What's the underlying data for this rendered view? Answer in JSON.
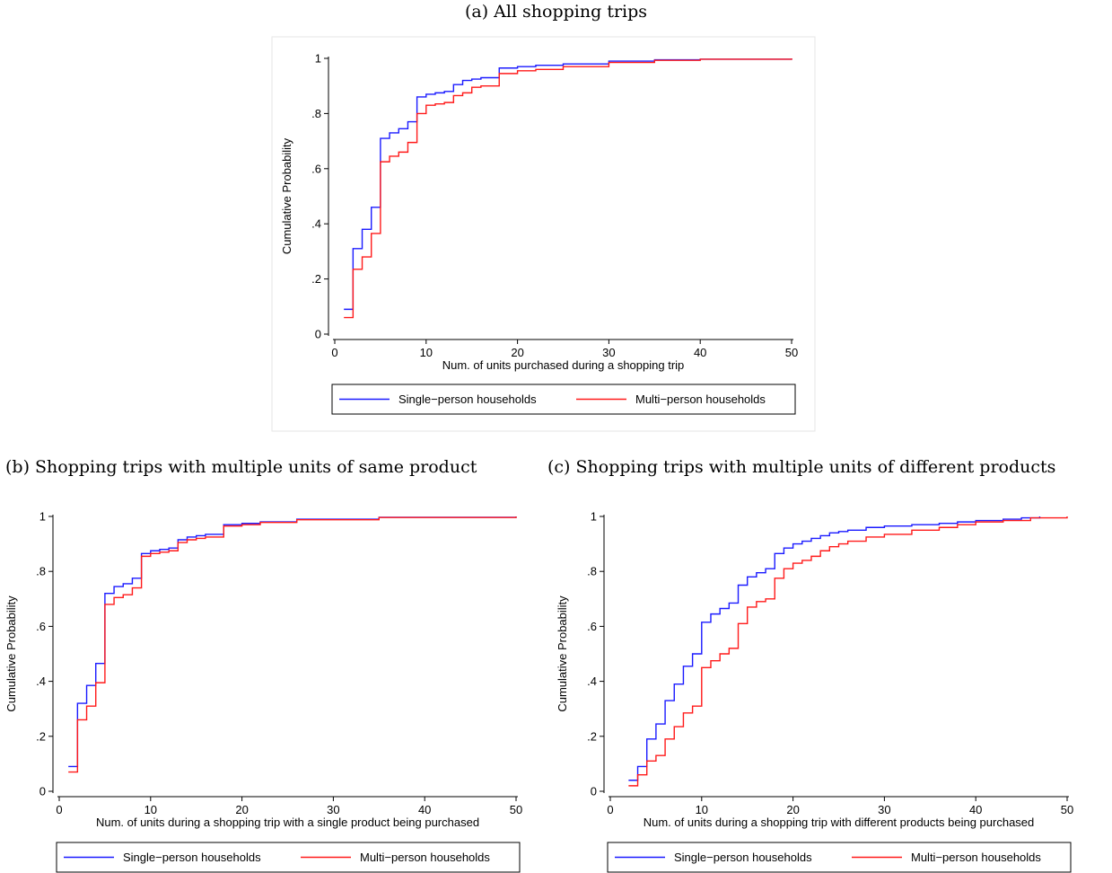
{
  "captions": {
    "a": "(a) All shopping trips",
    "b": "(b) Shopping trips with multiple units of same product",
    "c": "(c) Shopping trips with multiple units of different products"
  },
  "colors": {
    "single": "#1a1aff",
    "multi": "#ff1a1a"
  },
  "chart_data": [
    {
      "id": "a",
      "type": "line",
      "step": true,
      "xlabel": "Num. of units purchased during a shopping trip",
      "ylabel": "Cumulative Probability",
      "xlim": [
        0,
        50
      ],
      "ylim": [
        0,
        1
      ],
      "xticks": [
        0,
        10,
        20,
        30,
        40,
        50
      ],
      "yticks": [
        0,
        0.2,
        0.4,
        0.6,
        0.8,
        1
      ],
      "ytick_labels": [
        "0",
        ".2",
        ".4",
        ".6",
        ".8",
        "1"
      ],
      "legend_position": "bottom",
      "series": [
        {
          "name": "Single−person households",
          "color_key": "single",
          "points": [
            [
              1,
              0.09
            ],
            [
              2,
              0.31
            ],
            [
              3,
              0.38
            ],
            [
              4,
              0.46
            ],
            [
              5,
              0.71
            ],
            [
              6,
              0.73
            ],
            [
              7,
              0.745
            ],
            [
              8,
              0.77
            ],
            [
              9,
              0.86
            ],
            [
              10,
              0.87
            ],
            [
              11,
              0.875
            ],
            [
              12,
              0.88
            ],
            [
              13,
              0.905
            ],
            [
              14,
              0.92
            ],
            [
              15,
              0.925
            ],
            [
              16,
              0.93
            ],
            [
              18,
              0.965
            ],
            [
              20,
              0.97
            ],
            [
              22,
              0.975
            ],
            [
              25,
              0.98
            ],
            [
              30,
              0.99
            ],
            [
              35,
              0.995
            ],
            [
              40,
              0.997
            ],
            [
              50,
              1.0
            ]
          ]
        },
        {
          "name": "Multi−person households",
          "color_key": "multi",
          "points": [
            [
              1,
              0.06
            ],
            [
              2,
              0.235
            ],
            [
              3,
              0.28
            ],
            [
              4,
              0.365
            ],
            [
              5,
              0.625
            ],
            [
              6,
              0.645
            ],
            [
              7,
              0.66
            ],
            [
              8,
              0.695
            ],
            [
              9,
              0.8
            ],
            [
              10,
              0.83
            ],
            [
              11,
              0.835
            ],
            [
              12,
              0.84
            ],
            [
              13,
              0.865
            ],
            [
              14,
              0.875
            ],
            [
              15,
              0.895
            ],
            [
              16,
              0.9
            ],
            [
              18,
              0.945
            ],
            [
              20,
              0.955
            ],
            [
              22,
              0.96
            ],
            [
              25,
              0.97
            ],
            [
              30,
              0.985
            ],
            [
              35,
              0.993
            ],
            [
              40,
              0.997
            ],
            [
              50,
              1.0
            ]
          ]
        }
      ]
    },
    {
      "id": "b",
      "type": "line",
      "step": true,
      "xlabel": "Num. of units during a shopping trip with a single product being purchased",
      "ylabel": "Cumulative Probability",
      "xlim": [
        0,
        50
      ],
      "ylim": [
        0,
        1
      ],
      "xticks": [
        0,
        10,
        20,
        30,
        40,
        50
      ],
      "yticks": [
        0,
        0.2,
        0.4,
        0.6,
        0.8,
        1
      ],
      "ytick_labels": [
        "0",
        ".2",
        ".4",
        ".6",
        ".8",
        "1"
      ],
      "legend_position": "bottom",
      "series": [
        {
          "name": "Single−person households",
          "color_key": "single",
          "points": [
            [
              1,
              0.09
            ],
            [
              2,
              0.32
            ],
            [
              3,
              0.385
            ],
            [
              4,
              0.465
            ],
            [
              5,
              0.72
            ],
            [
              6,
              0.745
            ],
            [
              7,
              0.755
            ],
            [
              8,
              0.775
            ],
            [
              9,
              0.865
            ],
            [
              10,
              0.875
            ],
            [
              11,
              0.88
            ],
            [
              12,
              0.885
            ],
            [
              13,
              0.915
            ],
            [
              14,
              0.925
            ],
            [
              15,
              0.93
            ],
            [
              16,
              0.935
            ],
            [
              18,
              0.97
            ],
            [
              20,
              0.975
            ],
            [
              22,
              0.98
            ],
            [
              26,
              0.99
            ],
            [
              35,
              0.997
            ],
            [
              50,
              1.0
            ]
          ]
        },
        {
          "name": "Multi−person households",
          "color_key": "multi",
          "points": [
            [
              1,
              0.07
            ],
            [
              2,
              0.26
            ],
            [
              3,
              0.31
            ],
            [
              4,
              0.395
            ],
            [
              5,
              0.68
            ],
            [
              6,
              0.705
            ],
            [
              7,
              0.715
            ],
            [
              8,
              0.74
            ],
            [
              9,
              0.855
            ],
            [
              10,
              0.865
            ],
            [
              11,
              0.87
            ],
            [
              12,
              0.875
            ],
            [
              13,
              0.905
            ],
            [
              14,
              0.915
            ],
            [
              15,
              0.92
            ],
            [
              16,
              0.925
            ],
            [
              18,
              0.965
            ],
            [
              20,
              0.97
            ],
            [
              22,
              0.978
            ],
            [
              26,
              0.988
            ],
            [
              35,
              0.996
            ],
            [
              50,
              1.0
            ]
          ]
        }
      ]
    },
    {
      "id": "c",
      "type": "line",
      "step": true,
      "xlabel": "Num. of units during a shopping trip with different products being purchased",
      "ylabel": "Cumulative Probability",
      "xlim": [
        0,
        50
      ],
      "ylim": [
        0,
        1
      ],
      "xticks": [
        0,
        10,
        20,
        30,
        40,
        50
      ],
      "yticks": [
        0,
        0.2,
        0.4,
        0.6,
        0.8,
        1
      ],
      "ytick_labels": [
        "0",
        ".2",
        ".4",
        ".6",
        ".8",
        "1"
      ],
      "legend_position": "bottom",
      "series": [
        {
          "name": "Single−person households",
          "color_key": "single",
          "points": [
            [
              2,
              0.04
            ],
            [
              3,
              0.09
            ],
            [
              4,
              0.19
            ],
            [
              5,
              0.245
            ],
            [
              6,
              0.33
            ],
            [
              7,
              0.39
            ],
            [
              8,
              0.455
            ],
            [
              9,
              0.5
            ],
            [
              10,
              0.615
            ],
            [
              11,
              0.645
            ],
            [
              12,
              0.665
            ],
            [
              13,
              0.685
            ],
            [
              14,
              0.75
            ],
            [
              15,
              0.78
            ],
            [
              16,
              0.795
            ],
            [
              17,
              0.81
            ],
            [
              18,
              0.865
            ],
            [
              19,
              0.885
            ],
            [
              20,
              0.9
            ],
            [
              21,
              0.91
            ],
            [
              22,
              0.92
            ],
            [
              23,
              0.93
            ],
            [
              24,
              0.94
            ],
            [
              25,
              0.945
            ],
            [
              26,
              0.95
            ],
            [
              28,
              0.96
            ],
            [
              30,
              0.965
            ],
            [
              33,
              0.97
            ],
            [
              36,
              0.975
            ],
            [
              38,
              0.98
            ],
            [
              40,
              0.985
            ],
            [
              43,
              0.99
            ],
            [
              45,
              0.995
            ],
            [
              47,
              1.0
            ]
          ]
        },
        {
          "name": "Multi−person households",
          "color_key": "multi",
          "points": [
            [
              2,
              0.02
            ],
            [
              3,
              0.06
            ],
            [
              4,
              0.11
            ],
            [
              5,
              0.13
            ],
            [
              6,
              0.19
            ],
            [
              7,
              0.235
            ],
            [
              8,
              0.285
            ],
            [
              9,
              0.31
            ],
            [
              10,
              0.45
            ],
            [
              11,
              0.475
            ],
            [
              12,
              0.5
            ],
            [
              13,
              0.52
            ],
            [
              14,
              0.61
            ],
            [
              15,
              0.67
            ],
            [
              16,
              0.69
            ],
            [
              17,
              0.7
            ],
            [
              18,
              0.775
            ],
            [
              19,
              0.81
            ],
            [
              20,
              0.83
            ],
            [
              21,
              0.84
            ],
            [
              22,
              0.855
            ],
            [
              23,
              0.875
            ],
            [
              24,
              0.89
            ],
            [
              25,
              0.9
            ],
            [
              26,
              0.91
            ],
            [
              28,
              0.925
            ],
            [
              30,
              0.935
            ],
            [
              33,
              0.95
            ],
            [
              36,
              0.96
            ],
            [
              38,
              0.97
            ],
            [
              40,
              0.98
            ],
            [
              43,
              0.985
            ],
            [
              46,
              0.995
            ],
            [
              50,
              1.0
            ]
          ]
        }
      ]
    }
  ]
}
